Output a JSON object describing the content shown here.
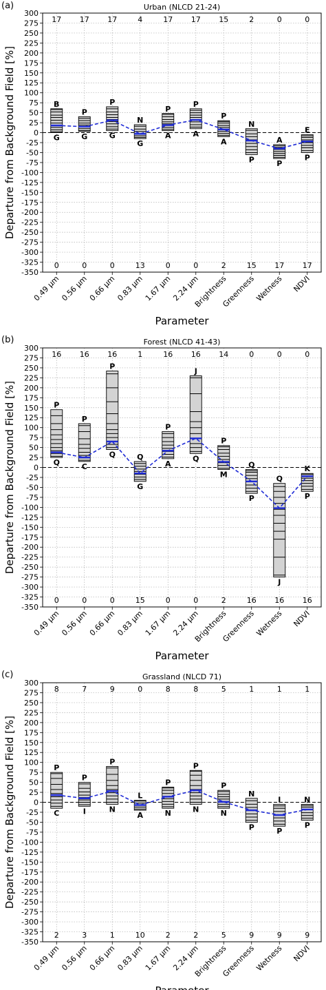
{
  "categories": [
    "0.49 μm",
    "0.56 μm",
    "0.66 μm",
    "0.83 μm",
    "1.67 μm",
    "2.24 μm",
    "Brightness",
    "Greenness",
    "Wetness",
    "NDVI"
  ],
  "colors": {
    "box_fill": "#d3d3d3",
    "median_line": "#1f2bd6",
    "grid": "#b0b0b0",
    "zero_line": "#000000"
  },
  "chart_data": [
    {
      "type": "box",
      "panel_label": "(a)",
      "title": "Urban (NLCD 21-24)",
      "xlabel": "Parameter",
      "ylabel": "Departure from Background Field [%]",
      "ylim": [
        -350,
        300
      ],
      "yticks": [
        300,
        275,
        250,
        225,
        200,
        175,
        150,
        125,
        100,
        75,
        50,
        25,
        0,
        -25,
        -50,
        -75,
        -100,
        -125,
        -150,
        -175,
        -200,
        -225,
        -250,
        -275,
        -300,
        -325,
        -350
      ],
      "grid": true,
      "top_counts": [
        "17",
        "17",
        "17",
        "4",
        "17",
        "17",
        "15",
        "2",
        "0",
        "0"
      ],
      "bottom_counts": [
        "0",
        "0",
        "0",
        "13",
        "0",
        "0",
        "2",
        "15",
        "17",
        "17"
      ],
      "boxes": [
        {
          "min": 0,
          "max": 60,
          "lines": [
            2,
            7,
            13,
            18,
            24,
            31,
            38,
            44,
            52,
            58
          ],
          "top_label": "B",
          "bottom_label": "G"
        },
        {
          "min": 3,
          "max": 40,
          "lines": [
            5,
            10,
            14,
            19,
            24,
            30,
            36
          ],
          "top_label": "P",
          "bottom_label": "G"
        },
        {
          "min": 5,
          "max": 65,
          "lines": [
            9,
            15,
            22,
            28,
            33,
            38,
            45,
            52,
            60
          ],
          "top_label": "P",
          "bottom_label": "G"
        },
        {
          "min": -15,
          "max": 20,
          "lines": [
            -12,
            -8,
            -3,
            3,
            9,
            16
          ],
          "top_label": "N",
          "bottom_label": "G"
        },
        {
          "min": 5,
          "max": 48,
          "lines": [
            8,
            13,
            18,
            22,
            27,
            33,
            40,
            46
          ],
          "top_label": "P",
          "bottom_label": "A"
        },
        {
          "min": 10,
          "max": 60,
          "lines": [
            14,
            20,
            27,
            33,
            38,
            44,
            50,
            56
          ],
          "top_label": "P",
          "bottom_label": "A"
        },
        {
          "min": -10,
          "max": 30,
          "lines": [
            -7,
            -2,
            3,
            8,
            13,
            18,
            24,
            28
          ],
          "top_label": "P",
          "bottom_label": "A"
        },
        {
          "min": -55,
          "max": 10,
          "lines": [
            -50,
            -43,
            -35,
            -27,
            -18,
            -10,
            -3,
            6
          ],
          "top_label": "N",
          "bottom_label": "P"
        },
        {
          "min": -65,
          "max": -30,
          "lines": [
            -62,
            -57,
            -52,
            -47,
            -42,
            -37,
            -33
          ],
          "top_label": "A",
          "bottom_label": "P"
        },
        {
          "min": -50,
          "max": -5,
          "lines": [
            -45,
            -38,
            -32,
            -25,
            -18,
            -12,
            -8
          ],
          "top_label": "E",
          "bottom_label": "P"
        }
      ],
      "median_series": [
        18,
        15,
        31,
        -3,
        19,
        32,
        8,
        -20,
        -40,
        -22
      ]
    },
    {
      "type": "box",
      "panel_label": "(b)",
      "title": "Forest (NLCD 41-43)",
      "xlabel": "Parameter",
      "ylabel": "Departure from Background Field [%]",
      "ylim": [
        -350,
        300
      ],
      "yticks": [
        300,
        275,
        250,
        225,
        200,
        175,
        150,
        125,
        100,
        75,
        50,
        25,
        0,
        -25,
        -50,
        -75,
        -100,
        -125,
        -150,
        -175,
        -200,
        -225,
        -250,
        -275,
        -300,
        -325,
        -350
      ],
      "grid": true,
      "top_counts": [
        "16",
        "16",
        "16",
        "1",
        "16",
        "16",
        "14",
        "0",
        "0",
        "0"
      ],
      "bottom_counts": [
        "0",
        "0",
        "0",
        "15",
        "0",
        "0",
        "2",
        "16",
        "16",
        "16"
      ],
      "boxes": [
        {
          "min": 25,
          "max": 145,
          "lines": [
            28,
            35,
            42,
            50,
            60,
            70,
            82,
            95,
            110,
            130
          ],
          "top_label": "P",
          "bottom_label": "Q"
        },
        {
          "min": 15,
          "max": 110,
          "lines": [
            18,
            24,
            30,
            38,
            48,
            58,
            72,
            90,
            105
          ],
          "top_label": "P",
          "bottom_label": "C"
        },
        {
          "min": 45,
          "max": 242,
          "lines": [
            50,
            58,
            66,
            75,
            85,
            95,
            110,
            135,
            165,
            200,
            235
          ],
          "top_label": "P",
          "bottom_label": "Q"
        },
        {
          "min": -35,
          "max": 15,
          "lines": [
            -30,
            -24,
            -17,
            -10,
            -4,
            3,
            10
          ],
          "top_label": "Q",
          "bottom_label": "G"
        },
        {
          "min": 22,
          "max": 90,
          "lines": [
            26,
            33,
            40,
            48,
            56,
            65,
            75,
            85
          ],
          "top_label": "P",
          "bottom_label": "A"
        },
        {
          "min": 35,
          "max": 230,
          "lines": [
            40,
            50,
            60,
            72,
            85,
            100,
            115,
            140,
            185,
            225
          ],
          "top_label": "J",
          "bottom_label": "Q"
        },
        {
          "min": -5,
          "max": 55,
          "lines": [
            -2,
            5,
            12,
            20,
            28,
            36,
            45,
            52
          ],
          "top_label": "P",
          "bottom_label": "M"
        },
        {
          "min": -65,
          "max": -5,
          "lines": [
            -60,
            -52,
            -44,
            -36,
            -28,
            -20,
            -12,
            -8
          ],
          "top_label": "Q",
          "bottom_label": "P"
        },
        {
          "min": -275,
          "max": -40,
          "lines": [
            -270,
            -225,
            -180,
            -160,
            -140,
            -120,
            -105,
            -90,
            -75,
            -60,
            -48
          ],
          "top_label": "Q",
          "bottom_label": "J"
        },
        {
          "min": -60,
          "max": -15,
          "lines": [
            -55,
            -47,
            -40,
            -33,
            -27,
            -21,
            -17
          ],
          "top_label": "K",
          "bottom_label": "P"
        }
      ],
      "median_series": [
        38,
        25,
        65,
        -15,
        42,
        73,
        14,
        -35,
        -102,
        -22
      ]
    },
    {
      "type": "box",
      "panel_label": "(c)",
      "title": "Grassland (NLCD 71)",
      "xlabel": "Parameter",
      "ylabel": "Departure from Background Field [%]",
      "ylim": [
        -350,
        300
      ],
      "yticks": [
        300,
        275,
        250,
        225,
        200,
        175,
        150,
        125,
        100,
        75,
        50,
        25,
        0,
        -25,
        -50,
        -75,
        -100,
        -125,
        -150,
        -175,
        -200,
        -225,
        -250,
        -275,
        -300,
        -325,
        -350
      ],
      "grid": true,
      "top_counts": [
        "8",
        "7",
        "9",
        "0",
        "8",
        "8",
        "5",
        "1",
        "1",
        "1"
      ],
      "bottom_counts": [
        "2",
        "3",
        "1",
        "10",
        "2",
        "2",
        "5",
        "9",
        "9",
        "9"
      ],
      "boxes": [
        {
          "min": -15,
          "max": 75,
          "lines": [
            -10,
            -2,
            6,
            14,
            22,
            32,
            45,
            60,
            72
          ],
          "top_label": "P",
          "bottom_label": "C"
        },
        {
          "min": -10,
          "max": 50,
          "lines": [
            -6,
            0,
            6,
            12,
            18,
            26,
            35,
            46
          ],
          "top_label": "P",
          "bottom_label": "I"
        },
        {
          "min": -5,
          "max": 90,
          "lines": [
            0,
            8,
            16,
            24,
            32,
            42,
            55,
            70,
            86
          ],
          "top_label": "P",
          "bottom_label": "N"
        },
        {
          "min": -20,
          "max": 5,
          "lines": [
            -17,
            -12,
            -7,
            -2,
            3
          ],
          "top_label": "L",
          "bottom_label": "A"
        },
        {
          "min": -15,
          "max": 38,
          "lines": [
            -11,
            -5,
            2,
            9,
            15,
            22,
            30,
            36
          ],
          "top_label": "P",
          "bottom_label": "N"
        },
        {
          "min": -5,
          "max": 80,
          "lines": [
            0,
            8,
            16,
            24,
            32,
            42,
            55,
            68,
            78
          ],
          "top_label": "P",
          "bottom_label": "N"
        },
        {
          "min": -15,
          "max": 30,
          "lines": [
            -11,
            -5,
            2,
            8,
            14,
            20,
            27
          ],
          "top_label": "P",
          "bottom_label": "N"
        },
        {
          "min": -50,
          "max": 10,
          "lines": [
            -45,
            -37,
            -29,
            -21,
            -13,
            -5,
            4
          ],
          "top_label": "N",
          "bottom_label": "P"
        },
        {
          "min": -60,
          "max": -5,
          "lines": [
            -55,
            -47,
            -39,
            -31,
            -23,
            -15,
            -9
          ],
          "top_label": "I",
          "bottom_label": "P"
        },
        {
          "min": -45,
          "max": -5,
          "lines": [
            -40,
            -33,
            -26,
            -19,
            -12,
            -8
          ],
          "top_label": "N",
          "bottom_label": "P"
        }
      ],
      "median_series": [
        18,
        10,
        28,
        -7,
        14,
        30,
        1,
        -20,
        -32,
        -18
      ]
    }
  ]
}
